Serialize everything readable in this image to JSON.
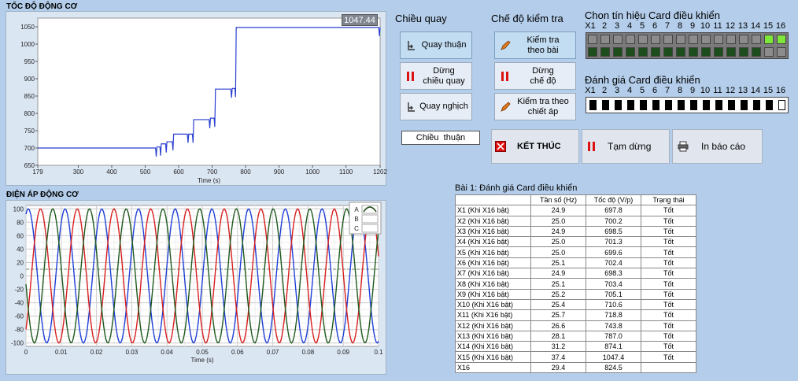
{
  "speed_panel": {
    "title": "TỐC ĐỘ ĐỘNG CƠ",
    "readout": "1047.44",
    "xlabel": "Time (s)",
    "xticks": [
      "179",
      "300",
      "400",
      "500",
      "600",
      "700",
      "800",
      "900",
      "1000",
      "1100",
      "1202"
    ],
    "yticks": [
      "1050",
      "1000",
      "950",
      "900",
      "850",
      "800",
      "750",
      "700",
      "650"
    ]
  },
  "voltage_panel": {
    "title": "ĐIỆN ÁP ĐỘNG CƠ",
    "xlabel": "Time (s)",
    "xticks": [
      "0",
      "0.01",
      "0.02",
      "0.03",
      "0.04",
      "0.05",
      "0.06",
      "0.07",
      "0.08",
      "0.09",
      "0.1"
    ],
    "yticks": [
      "100",
      "80",
      "60",
      "40",
      "20",
      "0",
      "-20",
      "-40",
      "-60",
      "-80",
      "-100"
    ],
    "legend": [
      "A",
      "B",
      "C"
    ]
  },
  "direction": {
    "title": "Chiều quay",
    "forward": "Quay thuận",
    "stop_line1": "Dừng",
    "stop_line2": "chiều quay",
    "reverse": "Quay nghịch",
    "status": "Chiều  thuận"
  },
  "mode": {
    "title": "Chế độ kiểm tra",
    "by_lesson_1": "Kiểm tra",
    "by_lesson_2": "theo bài",
    "stop_1": "Dừng",
    "stop_2": "chế độ",
    "by_pot_1": "Kiểm tra theo",
    "by_pot_2": "chiết áp"
  },
  "card_select": {
    "title": "Chon tín hiệu Card điều khiển",
    "labels": [
      "X1",
      "2",
      "3",
      "4",
      "5",
      "6",
      "7",
      "8",
      "9",
      "10",
      "11",
      "12",
      "13",
      "14",
      "15",
      "16"
    ]
  },
  "card_eval": {
    "title": "Đánh giá Card điều khiển",
    "labels": [
      "X1",
      "2",
      "3",
      "4",
      "5",
      "6",
      "7",
      "8",
      "9",
      "10",
      "11",
      "12",
      "13",
      "14",
      "15",
      "16"
    ]
  },
  "actions": {
    "finish": "KẾT THÚC",
    "pause": "Tạm dừng",
    "report": "In báo cáo"
  },
  "results": {
    "title": "Bài 1: Đánh giá Card điều khiển",
    "headers": [
      "",
      "Tần số (Hz)",
      "Tốc độ (V/p)",
      "Trạng thái"
    ],
    "rows": [
      [
        "X1 (Khi X16 bật)",
        "24.9",
        "697.8",
        "Tốt"
      ],
      [
        "X2 (Khi X16 bật)",
        "25.0",
        "700.2",
        "Tốt"
      ],
      [
        "X3 (Khi X16 bật)",
        "24.9",
        "698.5",
        "Tốt"
      ],
      [
        "X4 (Khi X16 bật)",
        "25.0",
        "701.3",
        "Tốt"
      ],
      [
        "X5 (Khi X16 bật)",
        "25.0",
        "699.6",
        "Tốt"
      ],
      [
        "X6 (Khi X16 bật)",
        "25.1",
        "702.4",
        "Tốt"
      ],
      [
        "X7 (Khi X16 bật)",
        "24.9",
        "698.3",
        "Tốt"
      ],
      [
        "X8 (Khi X16 bật)",
        "25.1",
        "703.4",
        "Tốt"
      ],
      [
        "X9 (Khi X16 bật)",
        "25.2",
        "705.1",
        "Tốt"
      ],
      [
        "X10 (Khi X16 bật)",
        "25.4",
        "710.6",
        "Tốt"
      ],
      [
        "X11 (Khi X16 bật)",
        "25.7",
        "718.8",
        "Tốt"
      ],
      [
        "X12 (Khi X16 bật)",
        "26.6",
        "743.8",
        "Tốt"
      ],
      [
        "X13 (Khi X16 bật)",
        "28.1",
        "787.0",
        "Tốt"
      ],
      [
        "X14 (Khi X16 bật)",
        "31.2",
        "874.1",
        "Tốt"
      ],
      [
        "X15 (Khi X16 bật)",
        "37.4",
        "1047.4",
        "Tốt"
      ],
      [
        "X16",
        "29.4",
        "824.5",
        ""
      ]
    ]
  },
  "colors": {
    "phase_a": "#1f3fd6",
    "phase_b": "#d81f1f",
    "phase_c": "#1e5a1e",
    "speed": "#2a3fd0",
    "led_on": "#7ee83a",
    "led_off": "#1d4d1d",
    "led_grey": "#8c8c8c"
  }
}
